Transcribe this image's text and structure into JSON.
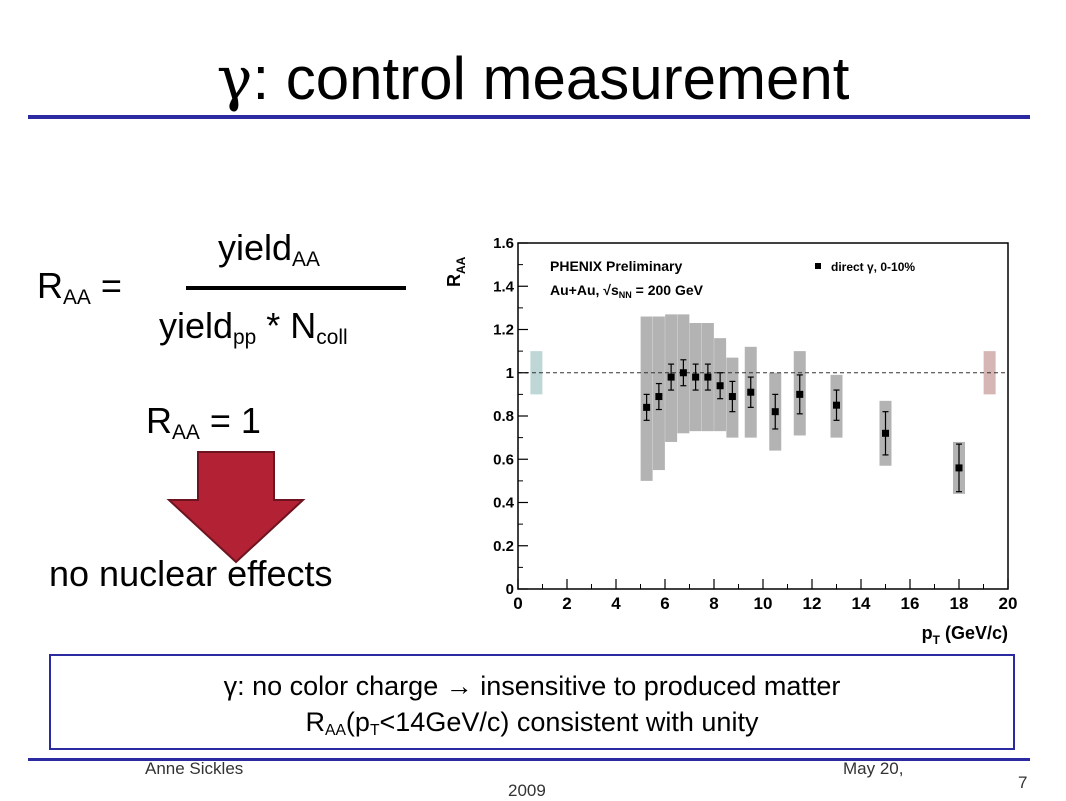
{
  "slide": {
    "title_symbol": "γ",
    "title_text": ": control measurement",
    "formula": {
      "lhs_main": "R",
      "lhs_sub": "AA",
      "lhs_eq": " =",
      "num_main": "yield",
      "num_sub": "AA",
      "den_main": "yield",
      "den_sub": "pp",
      "den_mid": " * N",
      "den_sub2": "coll"
    },
    "raa1": {
      "main": "R",
      "sub": "AA",
      "rest": " = 1"
    },
    "no_effects": "no nuclear effects",
    "callout": {
      "line1": "γ: no color charge → insensitive to produced matter",
      "line2_a": "R",
      "line2_sub1": "AA",
      "line2_b": "(p",
      "line2_sub2": "T",
      "line2_c": "<14GeV/c) consistent with unity"
    },
    "footer": {
      "author": "Anne Sickles",
      "date_line1": "May 20,",
      "date_line2": "2009",
      "page": "7"
    },
    "colors": {
      "accent": "#2c2aa0",
      "arrow": "#b22234"
    }
  },
  "chart_data": {
    "type": "scatter",
    "title": "PHENIX Preliminary",
    "subtitle": "Au+Au, √s_NN = 200 GeV",
    "xlabel": "p_T (GeV/c)",
    "ylabel": "R_AA",
    "xlim": [
      0,
      20
    ],
    "ylim": [
      0,
      1.6
    ],
    "xticks": [
      "0",
      "2",
      "4",
      "6",
      "8",
      "10",
      "12",
      "14",
      "16",
      "18",
      "20"
    ],
    "yticks": [
      "0",
      "0.2",
      "0.4",
      "0.6",
      "0.8",
      "1",
      "1.2",
      "1.4",
      "1.6"
    ],
    "reference_line": 1,
    "legend": {
      "label": "direct γ, 0-10%",
      "position": "top-right"
    },
    "series": [
      {
        "name": "direct γ, 0-10%",
        "points": [
          {
            "x": 5.25,
            "y": 0.84,
            "err": 0.06,
            "sys_low": 0.5,
            "sys_high": 1.26
          },
          {
            "x": 5.75,
            "y": 0.89,
            "err": 0.06,
            "sys_low": 0.55,
            "sys_high": 1.26
          },
          {
            "x": 6.25,
            "y": 0.98,
            "err": 0.06,
            "sys_low": 0.68,
            "sys_high": 1.27
          },
          {
            "x": 6.75,
            "y": 1.0,
            "err": 0.06,
            "sys_low": 0.72,
            "sys_high": 1.27
          },
          {
            "x": 7.25,
            "y": 0.98,
            "err": 0.06,
            "sys_low": 0.73,
            "sys_high": 1.23
          },
          {
            "x": 7.75,
            "y": 0.98,
            "err": 0.06,
            "sys_low": 0.73,
            "sys_high": 1.23
          },
          {
            "x": 8.25,
            "y": 0.94,
            "err": 0.06,
            "sys_low": 0.73,
            "sys_high": 1.16
          },
          {
            "x": 8.75,
            "y": 0.89,
            "err": 0.07,
            "sys_low": 0.7,
            "sys_high": 1.07
          },
          {
            "x": 9.5,
            "y": 0.91,
            "err": 0.07,
            "sys_low": 0.7,
            "sys_high": 1.12
          },
          {
            "x": 10.5,
            "y": 0.82,
            "err": 0.08,
            "sys_low": 0.64,
            "sys_high": 1.0
          },
          {
            "x": 11.5,
            "y": 0.9,
            "err": 0.09,
            "sys_low": 0.71,
            "sys_high": 1.1
          },
          {
            "x": 13.0,
            "y": 0.85,
            "err": 0.07,
            "sys_low": 0.7,
            "sys_high": 0.99
          },
          {
            "x": 15.0,
            "y": 0.72,
            "err": 0.1,
            "sys_low": 0.57,
            "sys_high": 0.87
          },
          {
            "x": 18.0,
            "y": 0.56,
            "err": 0.11,
            "sys_low": 0.44,
            "sys_high": 0.68
          }
        ]
      }
    ],
    "normalization_boxes": [
      {
        "x": 0.75,
        "low": 0.9,
        "high": 1.1,
        "color": "#bfd6d6"
      },
      {
        "x": 19.25,
        "low": 0.9,
        "high": 1.1,
        "color": "#d6b5b5"
      }
    ]
  }
}
